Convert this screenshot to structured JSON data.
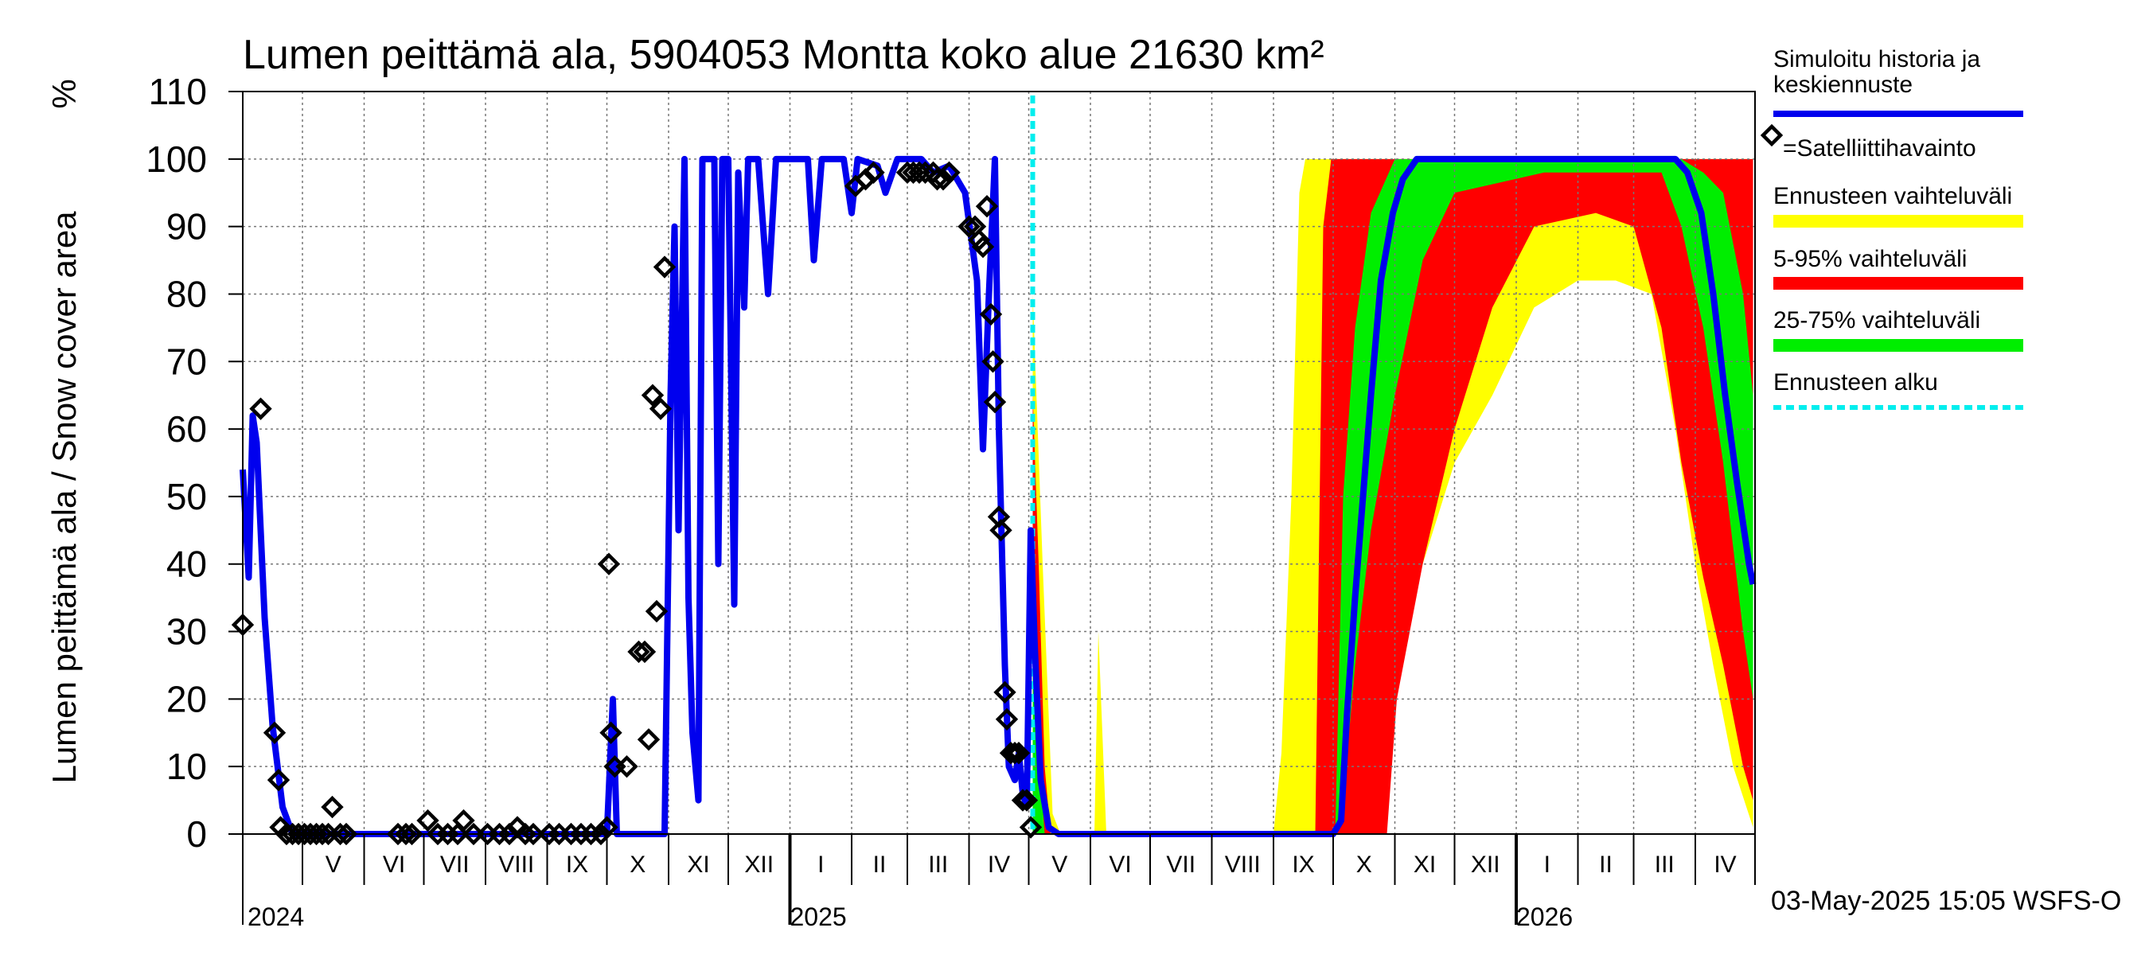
{
  "chart_data": {
    "type": "line",
    "title": "Lumen peittämä ala, 5904053 Montta koko alue 21630 km²",
    "ylabel": "Lumen peittämä ala / Snow cover area",
    "yunit": "%",
    "ylim": [
      0,
      110
    ],
    "yticks": [
      0,
      10,
      20,
      30,
      40,
      50,
      60,
      70,
      80,
      90,
      100,
      110
    ],
    "xlim": [
      "2024-04-01",
      "2026-05-01"
    ],
    "grid": true,
    "months": [
      {
        "label": "V",
        "start": "2024-05-01",
        "end": "2024-06-01"
      },
      {
        "label": "VI",
        "start": "2024-06-01",
        "end": "2024-07-01"
      },
      {
        "label": "VII",
        "start": "2024-07-01",
        "end": "2024-08-01"
      },
      {
        "label": "VIII",
        "start": "2024-08-01",
        "end": "2024-09-01"
      },
      {
        "label": "IX",
        "start": "2024-09-01",
        "end": "2024-10-01"
      },
      {
        "label": "X",
        "start": "2024-10-01",
        "end": "2024-11-01"
      },
      {
        "label": "XI",
        "start": "2024-11-01",
        "end": "2024-12-01"
      },
      {
        "label": "XII",
        "start": "2024-12-01",
        "end": "2025-01-01"
      },
      {
        "label": "I",
        "start": "2025-01-01",
        "end": "2025-02-01"
      },
      {
        "label": "II",
        "start": "2025-02-01",
        "end": "2025-03-01"
      },
      {
        "label": "III",
        "start": "2025-03-01",
        "end": "2025-04-01"
      },
      {
        "label": "IV",
        "start": "2025-04-01",
        "end": "2025-05-01"
      },
      {
        "label": "V",
        "start": "2025-05-01",
        "end": "2025-06-01"
      },
      {
        "label": "VI",
        "start": "2025-06-01",
        "end": "2025-07-01"
      },
      {
        "label": "VII",
        "start": "2025-07-01",
        "end": "2025-08-01"
      },
      {
        "label": "VIII",
        "start": "2025-08-01",
        "end": "2025-09-01"
      },
      {
        "label": "IX",
        "start": "2025-09-01",
        "end": "2025-10-01"
      },
      {
        "label": "X",
        "start": "2025-10-01",
        "end": "2025-11-01"
      },
      {
        "label": "XI",
        "start": "2025-11-01",
        "end": "2025-12-01"
      },
      {
        "label": "XII",
        "start": "2025-12-01",
        "end": "2026-01-01"
      },
      {
        "label": "I",
        "start": "2026-01-01",
        "end": "2026-02-01"
      },
      {
        "label": "II",
        "start": "2026-02-01",
        "end": "2026-03-01"
      },
      {
        "label": "III",
        "start": "2026-03-01",
        "end": "2026-04-01"
      },
      {
        "label": "IV",
        "start": "2026-04-01",
        "end": "2026-05-01"
      }
    ],
    "years": [
      {
        "label": "2024",
        "at": "2024-04-01"
      },
      {
        "label": "2025",
        "at": "2025-01-01"
      },
      {
        "label": "2026",
        "at": "2026-01-01"
      }
    ],
    "forecast_start": "2025-05-03",
    "legend": {
      "position": "right",
      "entries": [
        {
          "label": "Simuloitu historia ja keskiennuste",
          "kind": "line",
          "color": "#0000ee"
        },
        {
          "label": "=Satelliittihavainto",
          "kind": "marker",
          "color": "#000000"
        },
        {
          "label": "Ennusteen vaihteluväli",
          "kind": "band",
          "color": "#ffff00"
        },
        {
          "label": "5-95% vaihteluväli",
          "kind": "band",
          "color": "#ff0000"
        },
        {
          "label": "25-75% vaihteluväli",
          "kind": "band",
          "color": "#00ee00"
        },
        {
          "label": "Ennusteen alku",
          "kind": "dashed",
          "color": "#00eeee"
        }
      ]
    },
    "series": [
      {
        "name": "Simuloitu historia ja keskiennuste",
        "color": "#0000ee",
        "points": [
          [
            "2024-04-01",
            54
          ],
          [
            "2024-04-04",
            38
          ],
          [
            "2024-04-06",
            62
          ],
          [
            "2024-04-08",
            58
          ],
          [
            "2024-04-12",
            32
          ],
          [
            "2024-04-16",
            16
          ],
          [
            "2024-04-21",
            4
          ],
          [
            "2024-04-26",
            0
          ],
          [
            "2024-10-01",
            0
          ],
          [
            "2024-10-04",
            20
          ],
          [
            "2024-10-06",
            0
          ],
          [
            "2024-10-30",
            0
          ],
          [
            "2024-11-02",
            65
          ],
          [
            "2024-11-04",
            90
          ],
          [
            "2024-11-06",
            45
          ],
          [
            "2024-11-09",
            100
          ],
          [
            "2024-11-11",
            35
          ],
          [
            "2024-11-13",
            15
          ],
          [
            "2024-11-16",
            5
          ],
          [
            "2024-11-18",
            100
          ],
          [
            "2024-11-24",
            100
          ],
          [
            "2024-11-26",
            40
          ],
          [
            "2024-11-28",
            100
          ],
          [
            "2024-12-01",
            100
          ],
          [
            "2024-12-04",
            34
          ],
          [
            "2024-12-06",
            98
          ],
          [
            "2024-12-09",
            78
          ],
          [
            "2024-12-11",
            100
          ],
          [
            "2024-12-16",
            100
          ],
          [
            "2024-12-21",
            80
          ],
          [
            "2024-12-25",
            100
          ],
          [
            "2025-01-10",
            100
          ],
          [
            "2025-01-13",
            85
          ],
          [
            "2025-01-17",
            100
          ],
          [
            "2025-01-28",
            100
          ],
          [
            "2025-02-01",
            92
          ],
          [
            "2025-02-04",
            100
          ],
          [
            "2025-02-14",
            99
          ],
          [
            "2025-02-18",
            95
          ],
          [
            "2025-02-24",
            100
          ],
          [
            "2025-03-08",
            100
          ],
          [
            "2025-03-14",
            98
          ],
          [
            "2025-03-22",
            99
          ],
          [
            "2025-03-30",
            95
          ],
          [
            "2025-04-05",
            82
          ],
          [
            "2025-04-08",
            57
          ],
          [
            "2025-04-11",
            80
          ],
          [
            "2025-04-14",
            100
          ],
          [
            "2025-04-16",
            60
          ],
          [
            "2025-04-19",
            25
          ],
          [
            "2025-04-21",
            10
          ],
          [
            "2025-04-24",
            8
          ],
          [
            "2025-04-26",
            12
          ],
          [
            "2025-04-28",
            6
          ],
          [
            "2025-04-30",
            4
          ],
          [
            "2025-05-02",
            45
          ],
          [
            "2025-05-04",
            28
          ],
          [
            "2025-05-07",
            8
          ],
          [
            "2025-05-11",
            1
          ],
          [
            "2025-05-16",
            0
          ],
          [
            "2025-10-01",
            0
          ],
          [
            "2025-10-05",
            2
          ],
          [
            "2025-10-08",
            18
          ],
          [
            "2025-10-12",
            35
          ],
          [
            "2025-10-16",
            50
          ],
          [
            "2025-10-20",
            65
          ],
          [
            "2025-10-25",
            82
          ],
          [
            "2025-10-31",
            92
          ],
          [
            "2025-11-05",
            97
          ],
          [
            "2025-11-12",
            100
          ],
          [
            "2026-03-22",
            100
          ],
          [
            "2026-03-28",
            98
          ],
          [
            "2026-04-04",
            92
          ],
          [
            "2026-04-10",
            80
          ],
          [
            "2026-04-16",
            65
          ],
          [
            "2026-04-22",
            52
          ],
          [
            "2026-04-28",
            40
          ],
          [
            "2026-04-30",
            37
          ]
        ]
      }
    ],
    "observations": [
      [
        "2024-04-01",
        31
      ],
      [
        "2024-04-10",
        63
      ],
      [
        "2024-04-17",
        15
      ],
      [
        "2024-04-19",
        8
      ],
      [
        "2024-04-20",
        1
      ],
      [
        "2024-04-23",
        0
      ],
      [
        "2024-04-26",
        0
      ],
      [
        "2024-04-29",
        0
      ],
      [
        "2024-05-02",
        0
      ],
      [
        "2024-05-05",
        0
      ],
      [
        "2024-05-08",
        0
      ],
      [
        "2024-05-11",
        0
      ],
      [
        "2024-05-14",
        0
      ],
      [
        "2024-05-16",
        4
      ],
      [
        "2024-05-20",
        0
      ],
      [
        "2024-05-23",
        0
      ],
      [
        "2024-06-18",
        0
      ],
      [
        "2024-06-22",
        0
      ],
      [
        "2024-06-25",
        0
      ],
      [
        "2024-07-03",
        2
      ],
      [
        "2024-07-08",
        0
      ],
      [
        "2024-07-13",
        0
      ],
      [
        "2024-07-18",
        0
      ],
      [
        "2024-07-21",
        2
      ],
      [
        "2024-07-26",
        0
      ],
      [
        "2024-08-02",
        0
      ],
      [
        "2024-08-08",
        0
      ],
      [
        "2024-08-13",
        0
      ],
      [
        "2024-08-17",
        1
      ],
      [
        "2024-08-21",
        0
      ],
      [
        "2024-08-25",
        0
      ],
      [
        "2024-09-02",
        0
      ],
      [
        "2024-09-07",
        0
      ],
      [
        "2024-09-13",
        0
      ],
      [
        "2024-09-18",
        0
      ],
      [
        "2024-09-23",
        0
      ],
      [
        "2024-09-28",
        0
      ],
      [
        "2024-10-01",
        1
      ],
      [
        "2024-10-02",
        40
      ],
      [
        "2024-10-03",
        15
      ],
      [
        "2024-10-05",
        10
      ],
      [
        "2024-10-11",
        10
      ],
      [
        "2024-10-17",
        27
      ],
      [
        "2024-10-20",
        27
      ],
      [
        "2024-10-22",
        14
      ],
      [
        "2024-10-24",
        65
      ],
      [
        "2024-10-26",
        33
      ],
      [
        "2024-10-28",
        63
      ],
      [
        "2024-10-30",
        84
      ],
      [
        "2025-02-03",
        96
      ],
      [
        "2025-02-08",
        97
      ],
      [
        "2025-02-12",
        98
      ],
      [
        "2025-03-01",
        98
      ],
      [
        "2025-03-04",
        98
      ],
      [
        "2025-03-07",
        98
      ],
      [
        "2025-03-10",
        98
      ],
      [
        "2025-03-14",
        98
      ],
      [
        "2025-03-16",
        97
      ],
      [
        "2025-03-19",
        97
      ],
      [
        "2025-03-22",
        98
      ],
      [
        "2025-04-01",
        90
      ],
      [
        "2025-04-04",
        90
      ],
      [
        "2025-04-06",
        88
      ],
      [
        "2025-04-08",
        87
      ],
      [
        "2025-04-10",
        93
      ],
      [
        "2025-04-12",
        77
      ],
      [
        "2025-04-13",
        70
      ],
      [
        "2025-04-14",
        64
      ],
      [
        "2025-04-16",
        47
      ],
      [
        "2025-04-17",
        45
      ],
      [
        "2025-04-19",
        21
      ],
      [
        "2025-04-20",
        17
      ],
      [
        "2025-04-22",
        12
      ],
      [
        "2025-04-24",
        12
      ],
      [
        "2025-04-26",
        12
      ],
      [
        "2025-04-28",
        5
      ],
      [
        "2025-04-30",
        5
      ],
      [
        "2025-05-02",
        1
      ]
    ],
    "bands": [
      {
        "name": "Ennusteen vaihteluväli",
        "color": "#ffff00",
        "points": [
          [
            "2025-05-03",
            0,
            80
          ],
          [
            "2025-05-08",
            0,
            40
          ],
          [
            "2025-05-13",
            0,
            3
          ],
          [
            "2025-05-17",
            0,
            0
          ],
          [
            "2025-06-03",
            0,
            0
          ],
          [
            "2025-06-05",
            0,
            30
          ],
          [
            "2025-06-09",
            0,
            0
          ],
          [
            "2025-09-01",
            0,
            0
          ],
          [
            "2025-09-05",
            0,
            12
          ],
          [
            "2025-09-10",
            0,
            50
          ],
          [
            "2025-09-14",
            0,
            95
          ],
          [
            "2025-09-17",
            0,
            100
          ],
          [
            "2025-10-05",
            1,
            100
          ],
          [
            "2025-10-12",
            3,
            100
          ],
          [
            "2025-10-20",
            10,
            100
          ],
          [
            "2025-10-31",
            20,
            100
          ],
          [
            "2025-11-15",
            40,
            100
          ],
          [
            "2025-12-01",
            55,
            100
          ],
          [
            "2025-12-20",
            65,
            100
          ],
          [
            "2026-01-10",
            78,
            100
          ],
          [
            "2026-02-01",
            82,
            100
          ],
          [
            "2026-02-20",
            82,
            100
          ],
          [
            "2026-03-10",
            80,
            100
          ],
          [
            "2026-03-22",
            60,
            100
          ],
          [
            "2026-04-01",
            40,
            100
          ],
          [
            "2026-04-10",
            25,
            100
          ],
          [
            "2026-04-20",
            10,
            100
          ],
          [
            "2026-04-30",
            1,
            100
          ]
        ]
      },
      {
        "name": "5-95% vaihteluväli",
        "color": "#ff0000",
        "points": [
          [
            "2025-05-03",
            0,
            65
          ],
          [
            "2025-05-06",
            0,
            40
          ],
          [
            "2025-05-09",
            0,
            10
          ],
          [
            "2025-05-12",
            0,
            0
          ],
          [
            "2025-09-22",
            0,
            0
          ],
          [
            "2025-09-26",
            0,
            90
          ],
          [
            "2025-09-30",
            0,
            100
          ],
          [
            "2025-10-10",
            0,
            100
          ],
          [
            "2025-10-20",
            0,
            100
          ],
          [
            "2025-10-28",
            0,
            100
          ],
          [
            "2025-11-02",
            20,
            100
          ],
          [
            "2025-11-15",
            40,
            100
          ],
          [
            "2025-12-01",
            60,
            100
          ],
          [
            "2025-12-20",
            78,
            100
          ],
          [
            "2026-01-10",
            90,
            100
          ],
          [
            "2026-02-10",
            92,
            100
          ],
          [
            "2026-03-01",
            90,
            100
          ],
          [
            "2026-03-15",
            75,
            100
          ],
          [
            "2026-03-25",
            55,
            100
          ],
          [
            "2026-04-05",
            38,
            100
          ],
          [
            "2026-04-15",
            25,
            100
          ],
          [
            "2026-04-25",
            10,
            100
          ],
          [
            "2026-04-30",
            5,
            100
          ]
        ]
      },
      {
        "name": "25-75% vaihteluväli",
        "color": "#00ee00",
        "points": [
          [
            "2025-05-03",
            0,
            35
          ],
          [
            "2025-05-06",
            0,
            12
          ],
          [
            "2025-05-09",
            0,
            0
          ],
          [
            "2025-10-02",
            0,
            0
          ],
          [
            "2025-10-06",
            5,
            50
          ],
          [
            "2025-10-12",
            25,
            75
          ],
          [
            "2025-10-20",
            45,
            92
          ],
          [
            "2025-11-01",
            65,
            100
          ],
          [
            "2025-11-15",
            85,
            100
          ],
          [
            "2025-12-01",
            95,
            100
          ],
          [
            "2026-01-15",
            98,
            100
          ],
          [
            "2026-03-15",
            98,
            100
          ],
          [
            "2026-03-25",
            90,
            100
          ],
          [
            "2026-04-05",
            75,
            98
          ],
          [
            "2026-04-15",
            55,
            95
          ],
          [
            "2026-04-25",
            30,
            80
          ],
          [
            "2026-04-30",
            20,
            65
          ]
        ]
      }
    ],
    "footer": "03-May-2025 15:05 WSFS-O"
  }
}
